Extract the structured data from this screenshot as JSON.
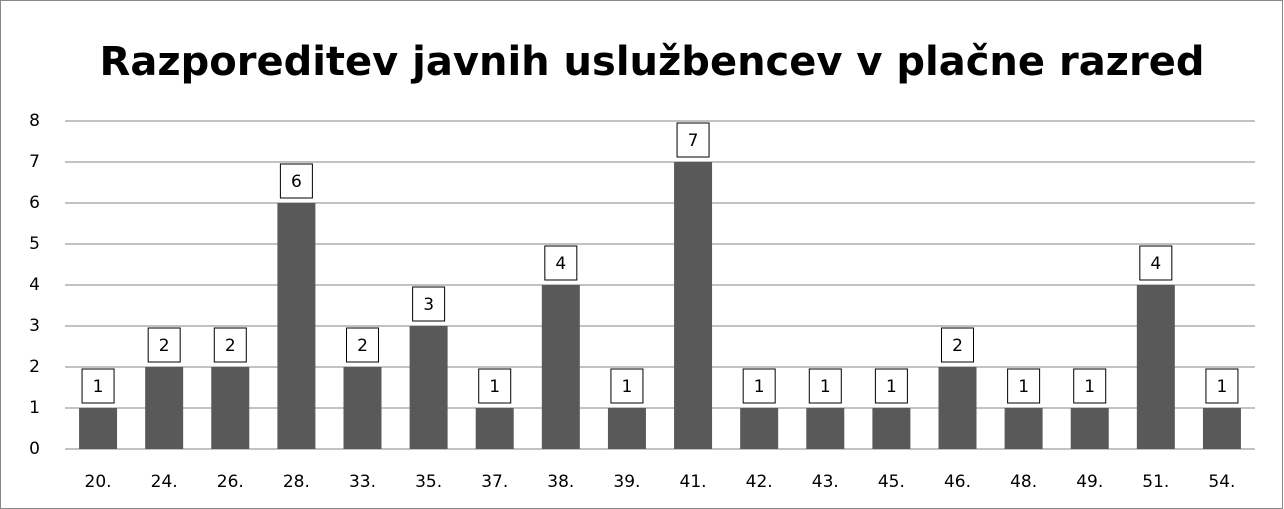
{
  "chart_data": {
    "type": "bar",
    "title": "Razporeditev javnih uslužbencev v plačne razred",
    "categories": [
      "20.",
      "24.",
      "26.",
      "28.",
      "33.",
      "35.",
      "37.",
      "38.",
      "39.",
      "41.",
      "42.",
      "43.",
      "45.",
      "46.",
      "48.",
      "49.",
      "51.",
      "54."
    ],
    "values": [
      1,
      2,
      2,
      6,
      2,
      3,
      1,
      4,
      1,
      7,
      1,
      1,
      1,
      2,
      1,
      1,
      4,
      1
    ],
    "color": "#595959",
    "ylim": [
      0,
      8
    ],
    "yticks": [
      0,
      1,
      2,
      3,
      4,
      5,
      6,
      7,
      8
    ],
    "grid": true
  }
}
